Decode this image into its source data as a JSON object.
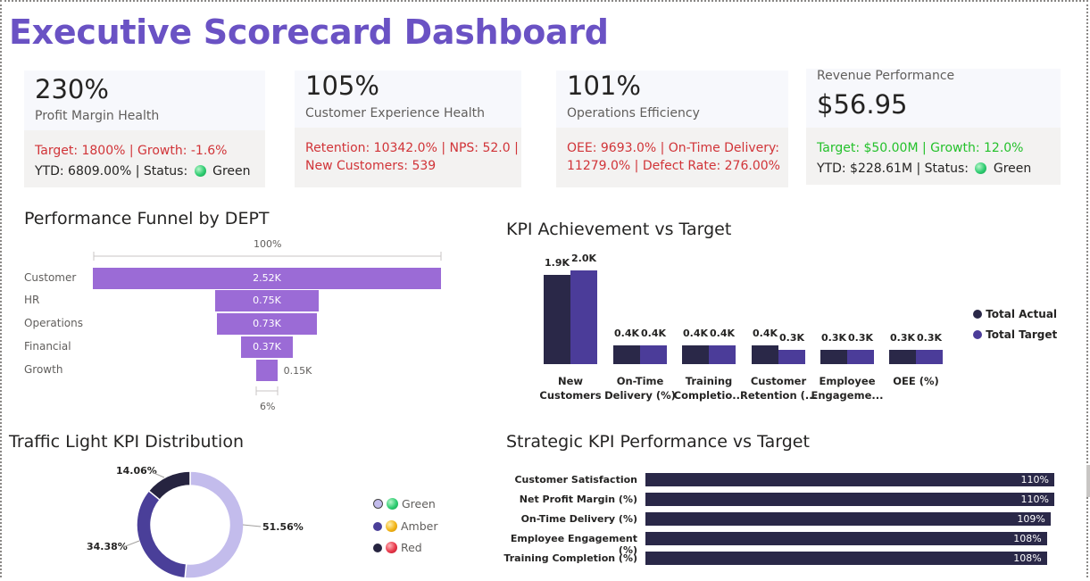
{
  "title": "Executive Scorecard Dashboard",
  "cards": [
    {
      "value": "230%",
      "label": "Profit Margin Health",
      "line1": "Target: 1800% | Growth: -1.6%",
      "line2": "YTD: 6809.00% | Status: ",
      "status": "Green"
    },
    {
      "value": "105%",
      "label": "Customer Experience Health",
      "line1": "Retention: 10342.0% | NPS: 52.0 |",
      "line2": "New Customers: 539"
    },
    {
      "value": "101%",
      "label": "Operations Efficiency",
      "line1": "OEE: 9693.0% | On-Time Delivery:",
      "line2": "11279.0% | Defect Rate: 276.00%"
    },
    {
      "value": "$56.95",
      "label": "Revenue Performance",
      "line1": "Target: $50.00M | Growth: 12.0%",
      "line2": "YTD: $228.61M | Status: ",
      "status": "Green"
    }
  ],
  "funnel": {
    "title": "Performance Funnel by DEPT",
    "top_pct": "100%",
    "bottom_pct": "6%",
    "rows": [
      {
        "dept": "Customer",
        "value": 2520,
        "label": "2.52K"
      },
      {
        "dept": "HR",
        "value": 750,
        "label": "0.75K"
      },
      {
        "dept": "Operations",
        "value": 730,
        "label": "0.73K"
      },
      {
        "dept": "Financial",
        "value": 370,
        "label": "0.37K"
      },
      {
        "dept": "Growth",
        "value": 150,
        "label": "0.15K"
      }
    ]
  },
  "kpi_chart": {
    "title": "KPI Achievement vs Target",
    "legend": [
      "Total Actual",
      "Total Target"
    ],
    "categories": [
      [
        "New",
        "Customers"
      ],
      [
        "On-Time",
        "Delivery (%)"
      ],
      [
        "Training",
        "Completio..."
      ],
      [
        "Customer",
        "Retention (..."
      ],
      [
        "Employee",
        "Engageme..."
      ],
      [
        "OEE (%)"
      ]
    ],
    "actual": [
      1900,
      400,
      400,
      400,
      300,
      300
    ],
    "target": [
      2000,
      400,
      400,
      300,
      300,
      300
    ],
    "actual_labels": [
      "1.9K",
      "0.4K",
      "0.4K",
      "0.4K",
      "0.3K",
      "0.3K"
    ],
    "target_labels": [
      "2.0K",
      "0.4K",
      "0.4K",
      "0.3K",
      "0.3K",
      "0.3K"
    ]
  },
  "traffic": {
    "title": "Traffic Light KPI Distribution",
    "slices": [
      {
        "name": "Green",
        "pct": 51.56,
        "label": "51.56%",
        "color": "#c3bcec"
      },
      {
        "name": "Amber",
        "pct": 34.38,
        "label": "34.38%",
        "color": "#4a3f99"
      },
      {
        "name": "Red",
        "pct": 14.06,
        "label": "14.06%",
        "color": "#262440"
      }
    ]
  },
  "strategic": {
    "title": "Strategic KPI Performance vs Target",
    "rows": [
      {
        "name": "Customer Satisfaction",
        "pct": 110,
        "label": "110%"
      },
      {
        "name": "Net Profit Margin (%)",
        "pct": 110,
        "label": "110%"
      },
      {
        "name": "On-Time Delivery (%)",
        "pct": 109,
        "label": "109%"
      },
      {
        "name": "Employee Engagement (%)",
        "pct": 108,
        "label": "108%"
      },
      {
        "name": "Training Completion (%)",
        "pct": 108,
        "label": "108%"
      }
    ]
  }
}
